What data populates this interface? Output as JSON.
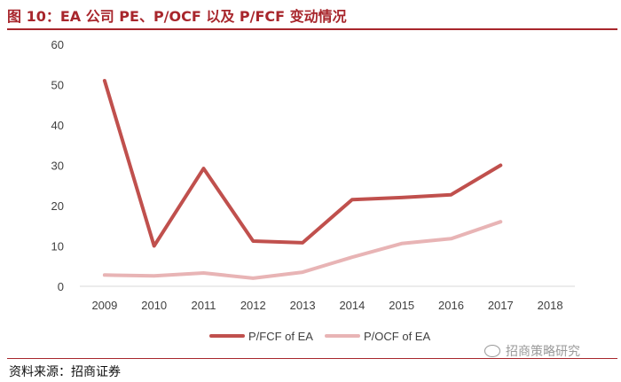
{
  "figure": {
    "title": "图 10：EA 公司 PE、P/OCF 以及 P/FCF 变动情况",
    "source": "资料来源：招商证券",
    "watermark": "招商策略研究"
  },
  "colors": {
    "accent": "#a8262c",
    "pfcf": "#c0504d",
    "pocf": "#e8b4b5",
    "axis": "#d9d9d9",
    "tick_text": "#404040"
  },
  "chart_data": {
    "type": "line",
    "title": "",
    "xlabel": "",
    "ylabel": "",
    "categories": [
      "2009",
      "2010",
      "2011",
      "2012",
      "2013",
      "2014",
      "2015",
      "2016",
      "2017",
      "2018"
    ],
    "ylim": [
      0,
      60
    ],
    "yticks": [
      0,
      10,
      20,
      30,
      40,
      50,
      60
    ],
    "grid": false,
    "legend_position": "bottom",
    "series": [
      {
        "name": "P/FCF of EA",
        "color": "#c0504d",
        "values": [
          51,
          10,
          29.2,
          11.2,
          10.8,
          21.5,
          22,
          22.7,
          30,
          null
        ]
      },
      {
        "name": "P/OCF of EA",
        "color": "#e8b4b5",
        "values": [
          2.8,
          2.6,
          3.3,
          2,
          3.5,
          7.2,
          10.6,
          11.8,
          16,
          null
        ]
      }
    ]
  }
}
